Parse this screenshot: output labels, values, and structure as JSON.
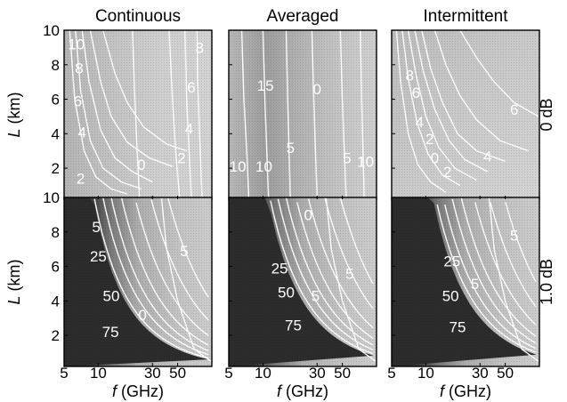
{
  "chart_data": {
    "type": "heatmap",
    "column_titles": [
      "Continuous",
      "Averaged",
      "Intermittent"
    ],
    "row_labels": [
      "0 dB",
      "1.0 dB"
    ],
    "ylabel_italic": "L",
    "ylabel_unit": "(km)",
    "xlabel_italic": "f",
    "xlabel_unit": "(GHz)",
    "x_scale": "log",
    "xlim": [
      5,
      100
    ],
    "ylim": [
      0.2,
      10
    ],
    "x_ticks": [
      5,
      10,
      30,
      50
    ],
    "x_tick_labels": [
      "5",
      "10",
      "30",
      "50"
    ],
    "y_ticks": [
      2,
      4,
      6,
      8,
      10
    ],
    "y_tick_labels": [
      "2",
      "4",
      "6",
      "8",
      "10"
    ],
    "panels": [
      {
        "row": 0,
        "col": 0,
        "contour_labels": [
          {
            "text": "10",
            "x": 6.4,
            "y": 9.2
          },
          {
            "text": "8",
            "x": 6.8,
            "y": 7.8
          },
          {
            "text": "6",
            "x": 6.6,
            "y": 5.9
          },
          {
            "text": "4",
            "x": 7.2,
            "y": 4.1
          },
          {
            "text": "2",
            "x": 7.0,
            "y": 1.4
          },
          {
            "text": "0",
            "x": 24.0,
            "y": 2.2
          },
          {
            "text": "2",
            "x": 54.0,
            "y": 2.6
          },
          {
            "text": "4",
            "x": 63.0,
            "y": 4.3
          },
          {
            "text": "6",
            "x": 66.0,
            "y": 6.7
          },
          {
            "text": "8",
            "x": 78.0,
            "y": 9.0
          }
        ]
      },
      {
        "row": 0,
        "col": 1,
        "contour_labels": [
          {
            "text": "15",
            "x": 10.5,
            "y": 6.8
          },
          {
            "text": "10",
            "x": 6.0,
            "y": 2.1
          },
          {
            "text": "10",
            "x": 10.2,
            "y": 2.1
          },
          {
            "text": "5",
            "x": 17.5,
            "y": 3.2
          },
          {
            "text": "0",
            "x": 30.0,
            "y": 6.6
          },
          {
            "text": "5",
            "x": 55.0,
            "y": 2.6
          },
          {
            "text": "10",
            "x": 80.0,
            "y": 2.4
          }
        ]
      },
      {
        "row": 0,
        "col": 2,
        "contour_labels": [
          {
            "text": "8",
            "x": 7.2,
            "y": 7.4
          },
          {
            "text": "6",
            "x": 8.2,
            "y": 6.4
          },
          {
            "text": "4",
            "x": 8.8,
            "y": 4.7
          },
          {
            "text": "2",
            "x": 10.8,
            "y": 3.7
          },
          {
            "text": "0",
            "x": 12.0,
            "y": 2.6
          },
          {
            "text": "2",
            "x": 15.5,
            "y": 1.8
          },
          {
            "text": "4",
            "x": 35.0,
            "y": 2.7
          },
          {
            "text": "6",
            "x": 60.0,
            "y": 5.4
          }
        ]
      },
      {
        "row": 1,
        "col": 0,
        "contour_labels": [
          {
            "text": "5",
            "x": 9.6,
            "y": 8.3
          },
          {
            "text": "25",
            "x": 10.0,
            "y": 6.6
          },
          {
            "text": "50",
            "x": 13.0,
            "y": 4.3
          },
          {
            "text": "75",
            "x": 12.8,
            "y": 2.2
          },
          {
            "text": "0",
            "x": 24.5,
            "y": 3.2
          },
          {
            "text": "5",
            "x": 57.0,
            "y": 6.9
          }
        ]
      },
      {
        "row": 1,
        "col": 1,
        "contour_labels": [
          {
            "text": "0",
            "x": 25.0,
            "y": 9.0
          },
          {
            "text": "25",
            "x": 14.0,
            "y": 5.9
          },
          {
            "text": "50",
            "x": 16.0,
            "y": 4.5
          },
          {
            "text": "75",
            "x": 18.5,
            "y": 2.6
          },
          {
            "text": "5",
            "x": 29.0,
            "y": 4.3
          },
          {
            "text": "5",
            "x": 58.0,
            "y": 5.6
          }
        ]
      },
      {
        "row": 1,
        "col": 2,
        "contour_labels": [
          {
            "text": "25",
            "x": 17.0,
            "y": 6.3
          },
          {
            "text": "50",
            "x": 16.5,
            "y": 4.3
          },
          {
            "text": "75",
            "x": 19.0,
            "y": 2.5
          },
          {
            "text": "5",
            "x": 27.0,
            "y": 5.0
          },
          {
            "text": "5",
            "x": 60.0,
            "y": 7.8
          }
        ]
      }
    ]
  }
}
